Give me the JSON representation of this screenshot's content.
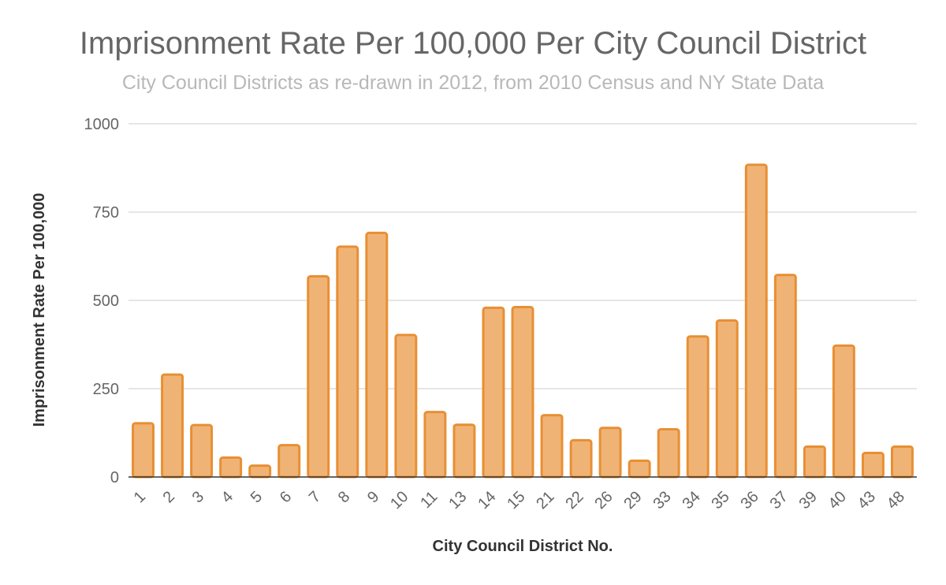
{
  "chart_data": {
    "type": "bar",
    "title": "Imprisonment Rate Per 100,000 Per City Council District",
    "subtitle": "City Council Districts as re-drawn in 2012, from 2010 Census and NY State Data",
    "xlabel": "City Council District No.",
    "ylabel": "Imprisonment Rate Per 100,000",
    "ylim": [
      0,
      1000
    ],
    "yticks": [
      "0",
      "250",
      "500",
      "750",
      "1000"
    ],
    "grid": true,
    "categories": [
      "1",
      "2",
      "3",
      "4",
      "5",
      "6",
      "7",
      "8",
      "9",
      "10",
      "11",
      "13",
      "14",
      "15",
      "21",
      "22",
      "26",
      "29",
      "33",
      "34",
      "35",
      "36",
      "37",
      "39",
      "40",
      "43",
      "48"
    ],
    "series": [
      {
        "name": "Imprisonment Rate Per 100,000",
        "values": [
          152,
          290,
          147,
          55,
          32,
          90,
          568,
          652,
          691,
          402,
          184,
          148,
          479,
          481,
          175,
          104,
          139,
          46,
          135,
          398,
          443,
          884,
          572,
          86,
          372,
          68,
          86
        ]
      }
    ],
    "colors": {
      "bar_fill": "#f0b376",
      "bar_stroke": "#e88f33"
    }
  }
}
